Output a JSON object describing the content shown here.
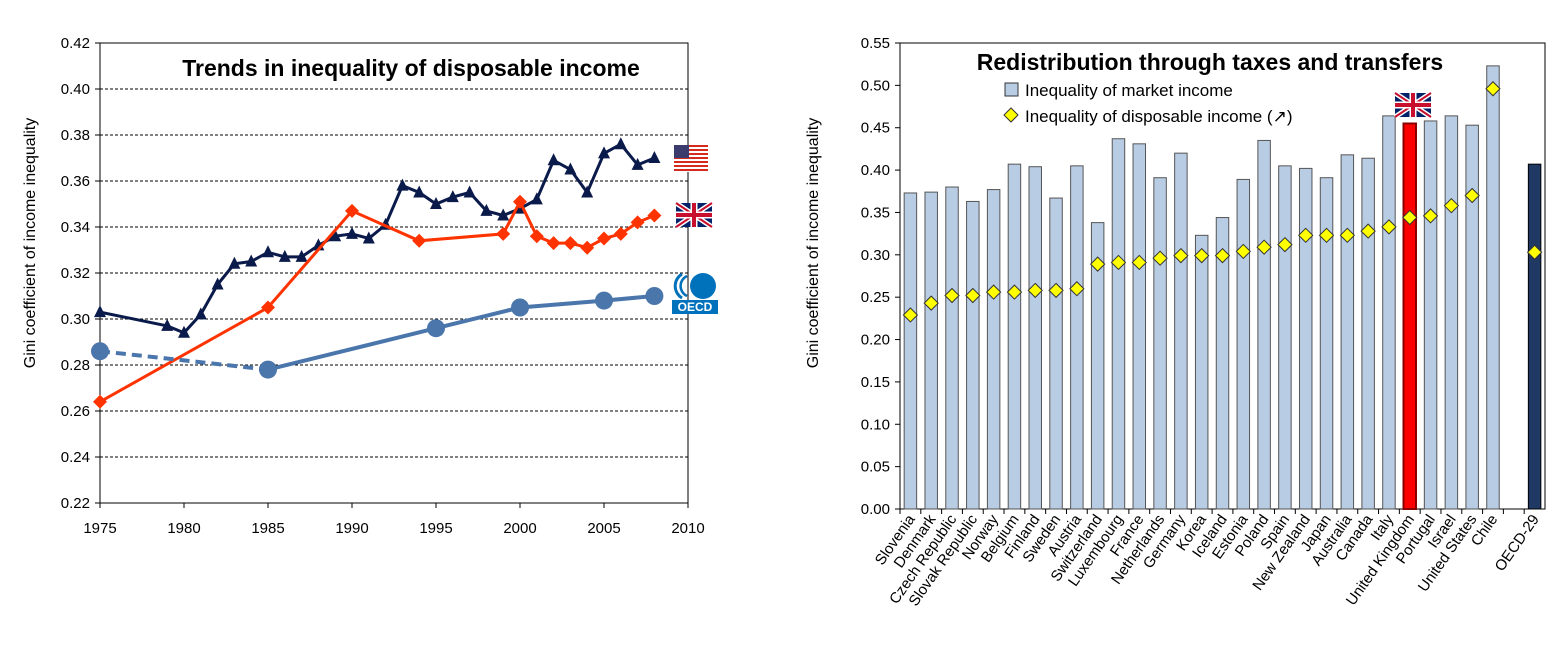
{
  "colors": {
    "us": "#0a1a4a",
    "uk": "#ff3300",
    "oecd": "#4a76ac",
    "bar": "#b8cce4",
    "bar_uk": "#ff0000",
    "bar_oecd": "#1f3864",
    "diamond": "#ffff00"
  },
  "chart_data": [
    {
      "type": "line",
      "title": "Trends in inequality of disposable income",
      "ylabel": "Gini coefficient of income inequality",
      "xlim": [
        1975,
        2010
      ],
      "ylim": [
        0.22,
        0.42
      ],
      "x_ticks": [
        "1975",
        "1980",
        "1985",
        "1990",
        "1995",
        "2000",
        "2005",
        "2010"
      ],
      "y_ticks": [
        "0.22",
        "0.24",
        "0.26",
        "0.28",
        "0.30",
        "0.32",
        "0.34",
        "0.36",
        "0.38",
        "0.40",
        "0.42"
      ],
      "grid": true,
      "series": [
        {
          "id": "us",
          "icon": "us-flag-icon",
          "marker": "triangle",
          "points": [
            [
              1975,
              0.303
            ],
            [
              1979,
              0.297
            ],
            [
              1980,
              0.294
            ],
            [
              1981,
              0.302
            ],
            [
              1982,
              0.315
            ],
            [
              1983,
              0.324
            ],
            [
              1984,
              0.325
            ],
            [
              1985,
              0.329
            ],
            [
              1986,
              0.327
            ],
            [
              1987,
              0.327
            ],
            [
              1988,
              0.332
            ],
            [
              1989,
              0.336
            ],
            [
              1990,
              0.337
            ],
            [
              1991,
              0.335
            ],
            [
              1992,
              0.341
            ],
            [
              1993,
              0.358
            ],
            [
              1994,
              0.355
            ],
            [
              1995,
              0.35
            ],
            [
              1996,
              0.353
            ],
            [
              1997,
              0.355
            ],
            [
              1998,
              0.347
            ],
            [
              1999,
              0.345
            ],
            [
              2000,
              0.348
            ],
            [
              2001,
              0.352
            ],
            [
              2002,
              0.369
            ],
            [
              2003,
              0.365
            ],
            [
              2004,
              0.355
            ],
            [
              2005,
              0.372
            ],
            [
              2006,
              0.376
            ],
            [
              2007,
              0.367
            ],
            [
              2008,
              0.37
            ]
          ]
        },
        {
          "id": "uk",
          "icon": "uk-flag-icon",
          "marker": "diamond",
          "points": [
            [
              1975,
              0.264
            ],
            [
              1985,
              0.305
            ],
            [
              1990,
              0.347
            ],
            [
              1994,
              0.334
            ],
            [
              1999,
              0.337
            ],
            [
              2000,
              0.351
            ],
            [
              2001,
              0.336
            ],
            [
              2002,
              0.333
            ],
            [
              2003,
              0.333
            ],
            [
              2004,
              0.331
            ],
            [
              2005,
              0.335
            ],
            [
              2006,
              0.337
            ],
            [
              2007,
              0.342
            ],
            [
              2008,
              0.345
            ]
          ]
        },
        {
          "id": "oecd",
          "icon": "oecd-logo-icon",
          "marker": "circle",
          "dashed_segment": [
            [
              1975,
              0.286
            ],
            [
              1985,
              0.278
            ]
          ],
          "points": [
            [
              1985,
              0.278
            ],
            [
              1995,
              0.296
            ],
            [
              2000,
              0.305
            ],
            [
              2005,
              0.308
            ],
            [
              2008,
              0.31
            ]
          ]
        }
      ]
    },
    {
      "type": "bar",
      "title": "Redistribution through taxes and transfers",
      "ylabel": "Gini coefficient  of income  inequality",
      "ylim": [
        0,
        0.55
      ],
      "y_ticks": [
        "0.00",
        "0.05",
        "0.10",
        "0.15",
        "0.20",
        "0.25",
        "0.30",
        "0.35",
        "0.40",
        "0.45",
        "0.50",
        "0.55"
      ],
      "legend": [
        "Inequality of market income",
        "Inequality of disposable income (↗)"
      ],
      "legend_position": "top",
      "categories": [
        "Slovenia",
        "Denmark",
        "Czech Republic",
        "Slovak Republic",
        "Norway",
        "Belgium",
        "Finland",
        "Sweden",
        "Austria",
        "Switzerland",
        "Luxembourg",
        "France",
        "Netherlands",
        "Germany",
        "Korea",
        "Iceland",
        "Estonia",
        "Poland",
        "Spain",
        "New Zealand",
        "Japan",
        "Australia",
        "Canada",
        "Italy",
        "United Kingdom",
        "Portugal",
        "Israel",
        "United States",
        "Chile",
        "",
        "OECD-29"
      ],
      "series": [
        {
          "name": "Inequality of market income",
          "values": [
            0.373,
            0.374,
            0.38,
            0.363,
            0.377,
            0.407,
            0.404,
            0.367,
            0.405,
            0.338,
            0.437,
            0.431,
            0.391,
            0.42,
            0.323,
            0.344,
            0.389,
            0.435,
            0.405,
            0.402,
            0.391,
            0.418,
            0.414,
            0.464,
            0.455,
            0.458,
            0.464,
            0.453,
            0.523,
            null,
            0.407
          ]
        },
        {
          "name": "Inequality of disposable income (↗)",
          "values": [
            0.229,
            0.243,
            0.252,
            0.252,
            0.256,
            0.256,
            0.258,
            0.258,
            0.26,
            0.289,
            0.291,
            0.291,
            0.296,
            0.299,
            0.299,
            0.299,
            0.304,
            0.309,
            0.312,
            0.323,
            0.323,
            0.323,
            0.328,
            0.333,
            0.344,
            0.346,
            0.358,
            0.37,
            0.496,
            null,
            0.303
          ]
        }
      ],
      "highlight": {
        "United Kingdom": "uk",
        "OECD-29": "oecd"
      },
      "flag_over": "United Kingdom"
    }
  ]
}
